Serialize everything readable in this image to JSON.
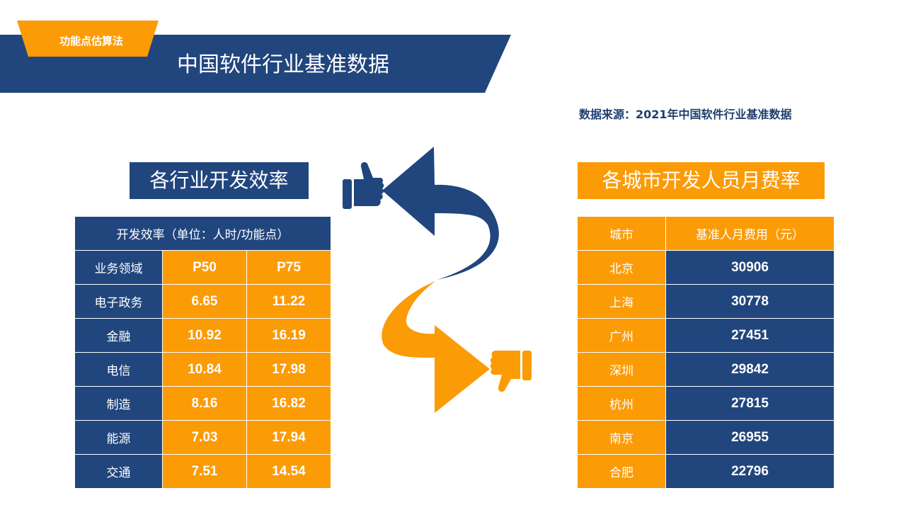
{
  "header": {
    "tab_label": "功能点估算法",
    "title": "中国软件行业基准数据"
  },
  "source": "数据来源：2021年中国软件行业基准数据",
  "colors": {
    "navy": "#21467e",
    "orange": "#fb9b06"
  },
  "left": {
    "heading": "各行业开发效率",
    "caption": "开发效率（单位：人时/功能点）",
    "columns": [
      "业务领域",
      "P50",
      "P75"
    ],
    "rows": [
      [
        "电子政务",
        "6.65",
        "11.22"
      ],
      [
        "金融",
        "10.92",
        "16.19"
      ],
      [
        "电信",
        "10.84",
        "17.98"
      ],
      [
        "制造",
        "8.16",
        "16.82"
      ],
      [
        "能源",
        "7.03",
        "17.94"
      ],
      [
        "交通",
        "7.51",
        "14.54"
      ]
    ]
  },
  "right": {
    "heading": "各城市开发人员月费率",
    "columns": [
      "城市",
      "基准人月费用（元）"
    ],
    "rows": [
      [
        "北京",
        "30906"
      ],
      [
        "上海",
        "30778"
      ],
      [
        "广州",
        "27451"
      ],
      [
        "深圳",
        "29842"
      ],
      [
        "杭州",
        "27815"
      ],
      [
        "南京",
        "26955"
      ],
      [
        "合肥",
        "22796"
      ]
    ]
  },
  "icons": [
    "thumbs-up-icon",
    "thumbs-down-icon",
    "curved-arrow-icon"
  ]
}
